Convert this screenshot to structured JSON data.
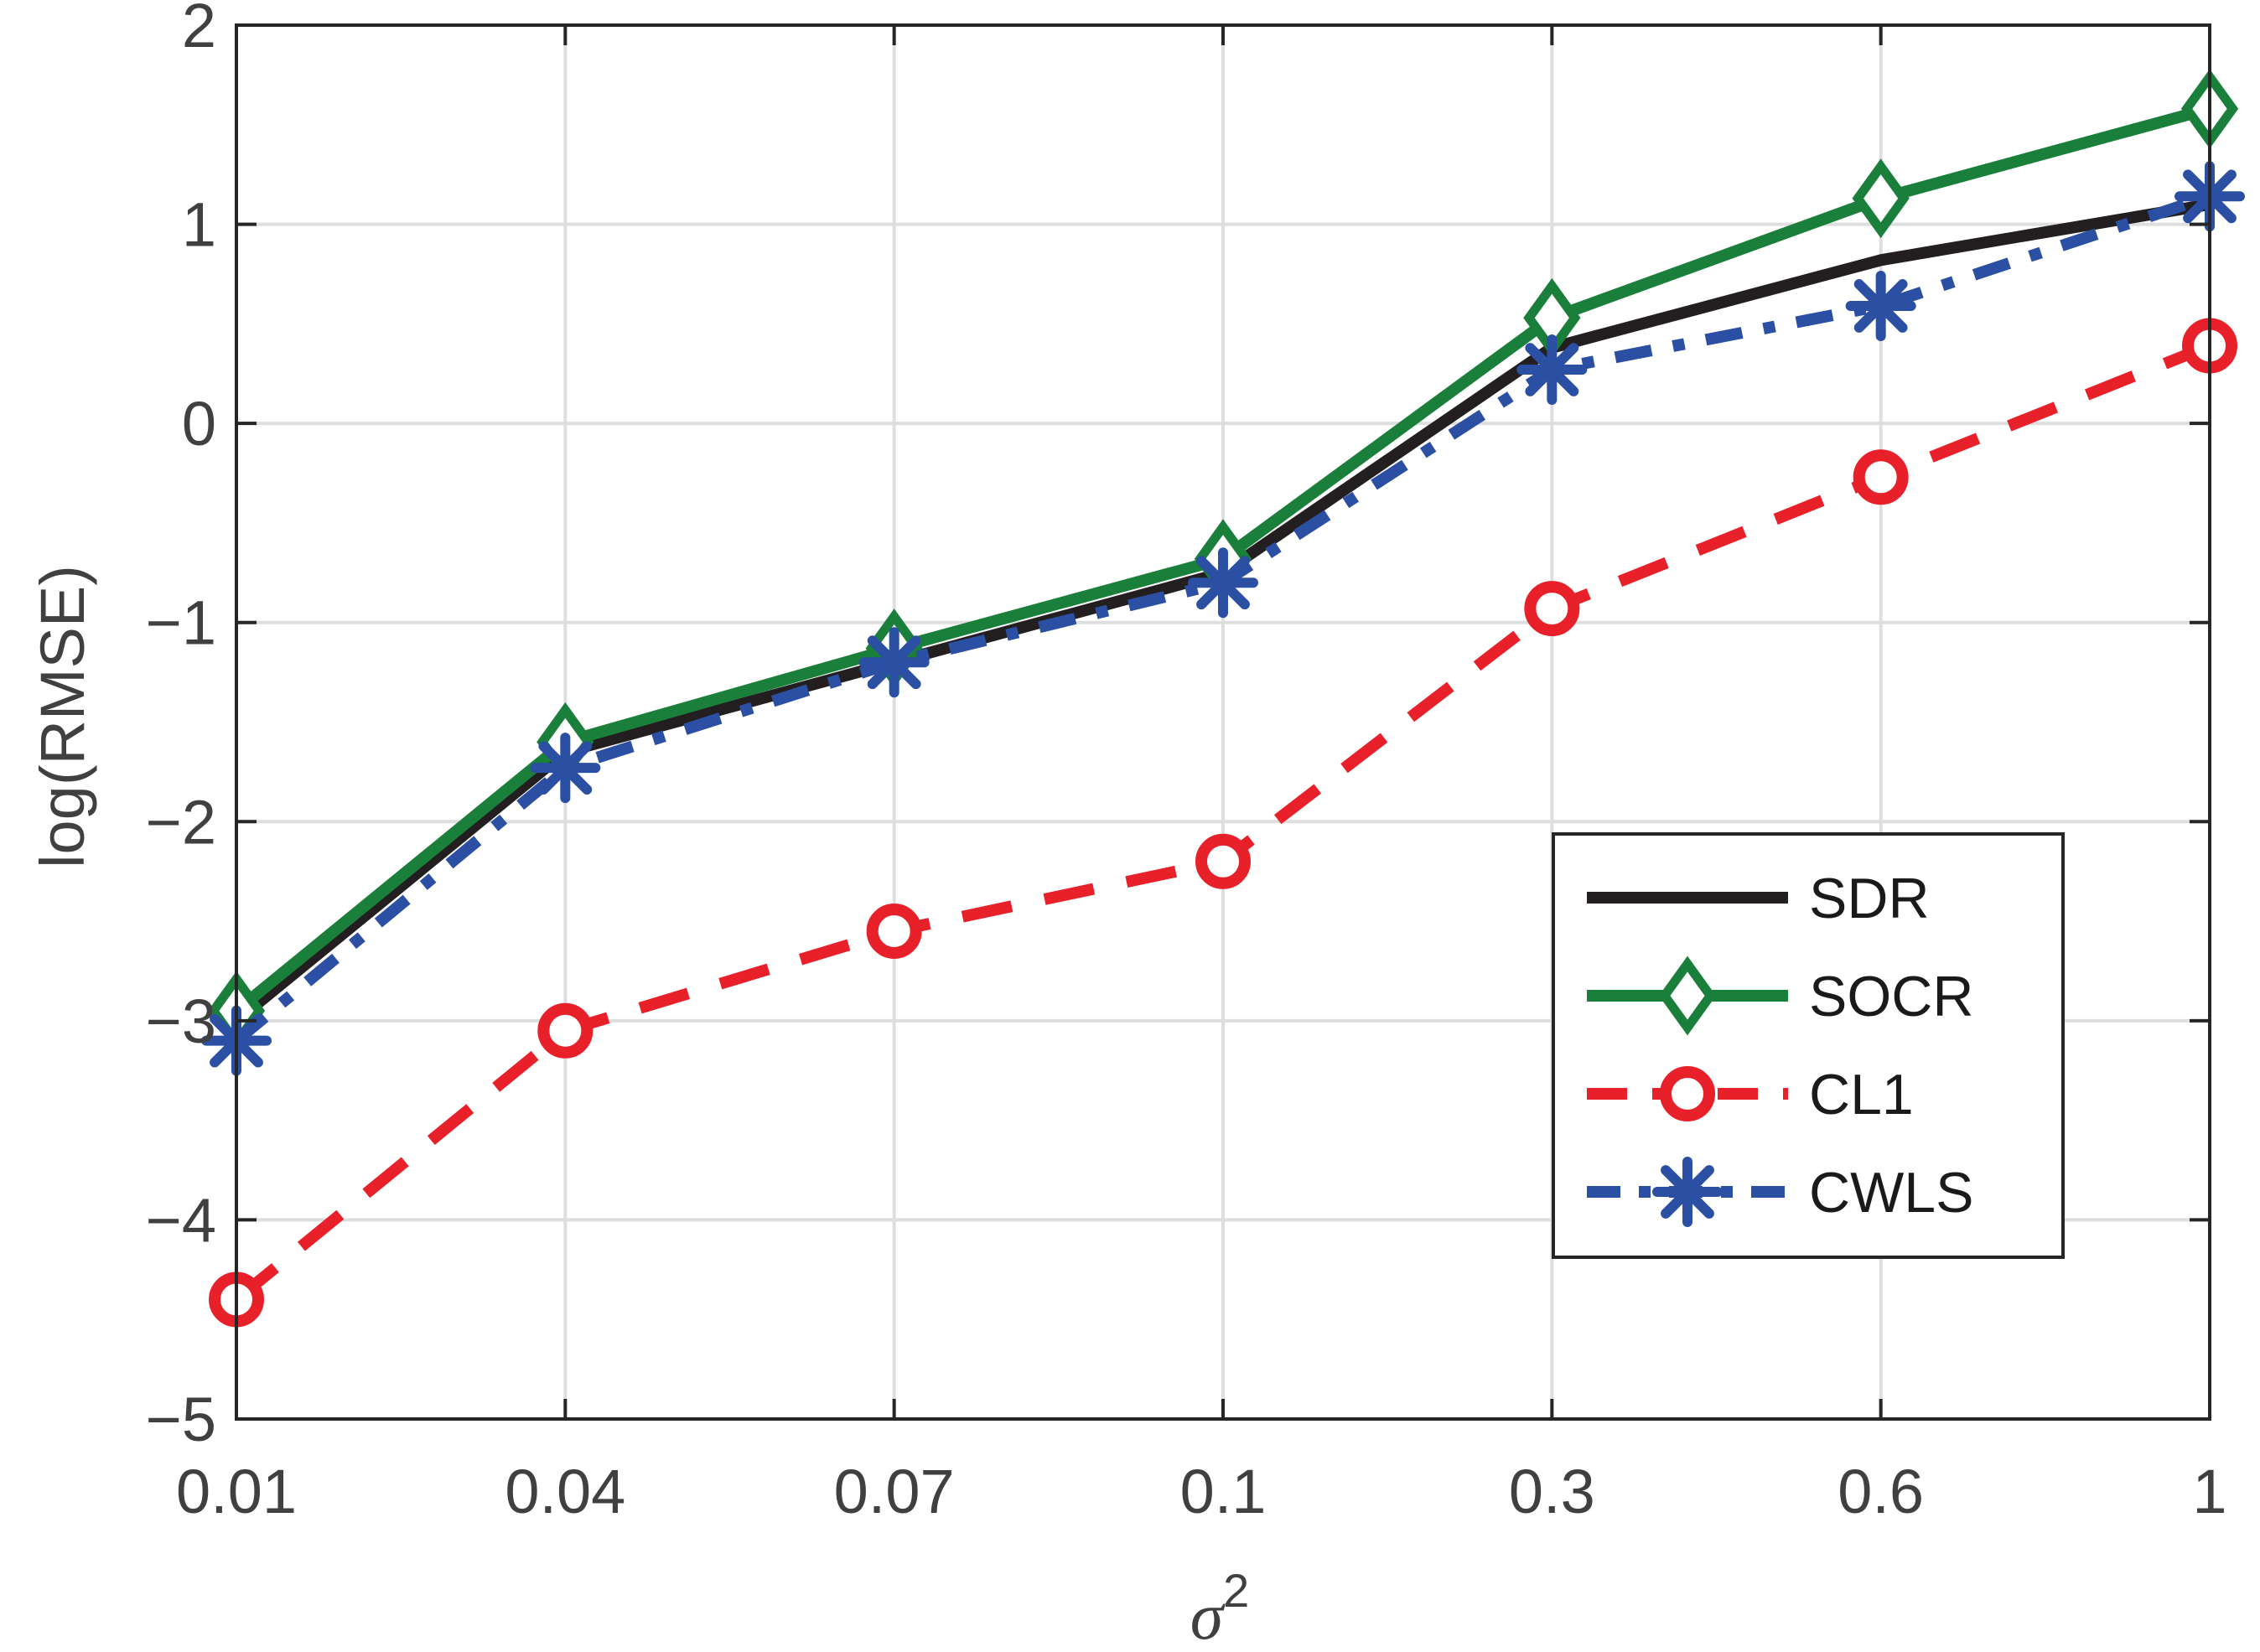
{
  "chart_data": {
    "type": "line",
    "title": "",
    "xlabel": "σ",
    "xlabel_superscript": "2",
    "ylabel": "log(RMSE)",
    "categories": [
      "0.01",
      "0.04",
      "0.07",
      "0.1",
      "0.3",
      "0.6",
      "1"
    ],
    "ylim": [
      -5,
      2
    ],
    "yticks": [
      -5,
      -4,
      -3,
      -2,
      -1,
      0,
      1,
      2
    ],
    "ytick_labels": [
      "−5",
      "−4",
      "−3",
      "−2",
      "−1",
      "0",
      "1",
      "2"
    ],
    "grid": true,
    "legend_position": "bottom-right",
    "series": [
      {
        "name": "SDR",
        "color": "#231f20",
        "style": "solid",
        "marker": "none",
        "values": [
          -3.0,
          -1.65,
          -1.2,
          -0.75,
          0.38,
          0.82,
          1.1
        ]
      },
      {
        "name": "SOCR",
        "color": "#1a7f3a",
        "style": "solid",
        "marker": "diamond",
        "values": [
          -2.95,
          -1.6,
          -1.13,
          -0.68,
          0.53,
          1.13,
          1.58
        ]
      },
      {
        "name": "CL1",
        "color": "#e8202a",
        "style": "dashed",
        "marker": "circle",
        "values": [
          -4.4,
          -3.05,
          -2.55,
          -2.2,
          -0.93,
          -0.27,
          0.39
        ]
      },
      {
        "name": "CWLS",
        "color": "#2b4fa3",
        "style": "dashdot",
        "marker": "asterisk",
        "values": [
          -3.1,
          -1.73,
          -1.2,
          -0.8,
          0.27,
          0.59,
          1.14
        ]
      }
    ]
  }
}
